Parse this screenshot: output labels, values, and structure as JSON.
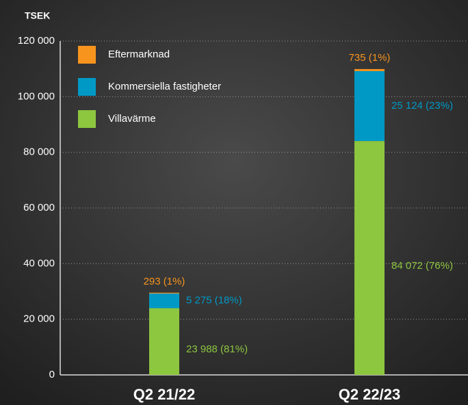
{
  "chart_data": {
    "type": "stacked_bar",
    "y_label": "TSEK",
    "categories": [
      "Q2 21/22",
      "Q2 22/23"
    ],
    "series": [
      {
        "name": "Villavärme",
        "color": "#8dc63f",
        "values": [
          23988,
          84072
        ],
        "value_labels": [
          "23 988 (81%)",
          "84 072 (76%)"
        ]
      },
      {
        "name": "Kommersiella fastigheter",
        "color": "#0099c6",
        "values": [
          5275,
          25124
        ],
        "value_labels": [
          "5 275 (18%)",
          "25 124 (23%)"
        ]
      },
      {
        "name": "Eftermarknad",
        "color": "#f7941d",
        "values": [
          293,
          735
        ],
        "value_labels": [
          "293 (1%)",
          "735 (1%)"
        ]
      }
    ],
    "ylim": [
      0,
      120000
    ],
    "yticks": [
      0,
      {
        "value": 20000,
        "label": "20 000"
      },
      {
        "value": 40000,
        "label": "40 000"
      },
      {
        "value": 60000,
        "label": "60 000"
      },
      {
        "value": 80000,
        "label": "80 000"
      },
      {
        "value": 100000,
        "label": "100 000"
      },
      {
        "value": 120000,
        "label": "120 000"
      }
    ],
    "grid": true,
    "legend": "upper left"
  }
}
